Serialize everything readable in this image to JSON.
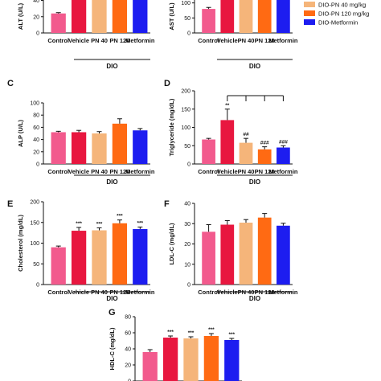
{
  "colors": [
    "#f25a8d",
    "#e8173f",
    "#f5b57a",
    "#ff6a13",
    "#1d1df0"
  ],
  "group_label": "DIO",
  "legend": [
    {
      "label": "DIO-PN 40 mg/kg",
      "color": "#f5b57a"
    },
    {
      "label": "DIO-PN 120 mg/kg",
      "color": "#ff6a13"
    },
    {
      "label": "DIO-Metformin",
      "color": "#1d1df0"
    }
  ],
  "chart_data": [
    {
      "id": "A",
      "type": "bar",
      "title": "",
      "panel_label": "",
      "ylabel": "ALT (U/L)",
      "ylim": [
        0,
        90
      ],
      "yticks": [
        0,
        20,
        40
      ],
      "categories": [
        "Control",
        "Vehicle",
        "PN 40",
        "PN 120",
        "Metformin"
      ],
      "values": [
        24,
        80,
        80,
        80,
        60
      ],
      "errors": [
        1,
        3,
        3,
        3,
        5
      ],
      "annotations": [
        "",
        "",
        "",
        "",
        ""
      ]
    },
    {
      "id": "B",
      "type": "bar",
      "title": "",
      "panel_label": "",
      "ylabel": "AST (U/L)",
      "ylim": [
        0,
        190
      ],
      "yticks": [
        0,
        50,
        100,
        150
      ],
      "categories": [
        "Control",
        "Vehicle",
        "PN 40",
        "PN 120",
        "Metformin"
      ],
      "values": [
        80,
        185,
        160,
        185,
        152
      ],
      "errors": [
        5,
        10,
        15,
        10,
        12
      ],
      "annotations": [
        "",
        "",
        "",
        "",
        ""
      ]
    },
    {
      "id": "C",
      "type": "bar",
      "title": "",
      "panel_label": "C",
      "ylabel": "ALP (U/L)",
      "ylim": [
        0,
        100
      ],
      "yticks": [
        0,
        20,
        40,
        60,
        80,
        100
      ],
      "categories": [
        "Control",
        "Vehicle",
        "PN 40",
        "PN 120",
        "Metformin"
      ],
      "values": [
        52,
        52,
        50,
        66,
        55
      ],
      "errors": [
        1.5,
        3,
        3,
        8,
        3
      ],
      "annotations": [
        "",
        "",
        "",
        "",
        ""
      ]
    },
    {
      "id": "D",
      "type": "bar",
      "title": "",
      "panel_label": "D",
      "ylabel": "Triglyceride (mg/dL)",
      "ylim": [
        0,
        200
      ],
      "yticks": [
        0,
        50,
        100,
        150,
        200
      ],
      "categories": [
        "Control",
        "Vehicle",
        "PN 40",
        "PN 120",
        "Metformin"
      ],
      "values": [
        67,
        120,
        58,
        40,
        45
      ],
      "errors": [
        3,
        30,
        12,
        7,
        5
      ],
      "annotations": [
        "",
        "**",
        "##",
        "###",
        "###"
      ]
    },
    {
      "id": "E",
      "type": "bar",
      "title": "",
      "panel_label": "E",
      "ylabel": "Cholesterol (mg/dL)",
      "ylim": [
        0,
        200
      ],
      "yticks": [
        0,
        50,
        100,
        150,
        200
      ],
      "categories": [
        "Control",
        "Vehicle",
        "PN 40",
        "PN 120",
        "Metformin"
      ],
      "values": [
        90,
        130,
        131,
        148,
        134
      ],
      "errors": [
        3,
        8,
        6,
        8,
        5
      ],
      "annotations": [
        "",
        "***",
        "***",
        "***",
        "***"
      ]
    },
    {
      "id": "F",
      "type": "bar",
      "title": "",
      "panel_label": "F",
      "ylabel": "LDL-C (mg/dL)",
      "ylim": [
        0,
        40
      ],
      "yticks": [
        0,
        10,
        20,
        30,
        40
      ],
      "categories": [
        "Control",
        "Vehicle",
        "PN 40",
        "PN 120",
        "Metformin"
      ],
      "values": [
        26,
        29.5,
        30.5,
        33,
        29
      ],
      "errors": [
        3.5,
        2,
        1.5,
        2,
        1.2
      ],
      "annotations": [
        "",
        "",
        "",
        "",
        ""
      ]
    },
    {
      "id": "G",
      "type": "bar",
      "title": "",
      "panel_label": "G",
      "ylabel": "HDL-C (mg/dL)",
      "ylim": [
        0,
        80
      ],
      "yticks": [
        0,
        20,
        40,
        60,
        80
      ],
      "categories": [
        "Control",
        "Vehicle",
        "PN 40",
        "PN 120",
        "Metformin"
      ],
      "values": [
        36,
        54,
        53,
        56,
        51
      ],
      "errors": [
        3,
        2,
        2,
        3,
        2
      ],
      "annotations": [
        "",
        "***",
        "***",
        "***",
        "***"
      ]
    }
  ]
}
